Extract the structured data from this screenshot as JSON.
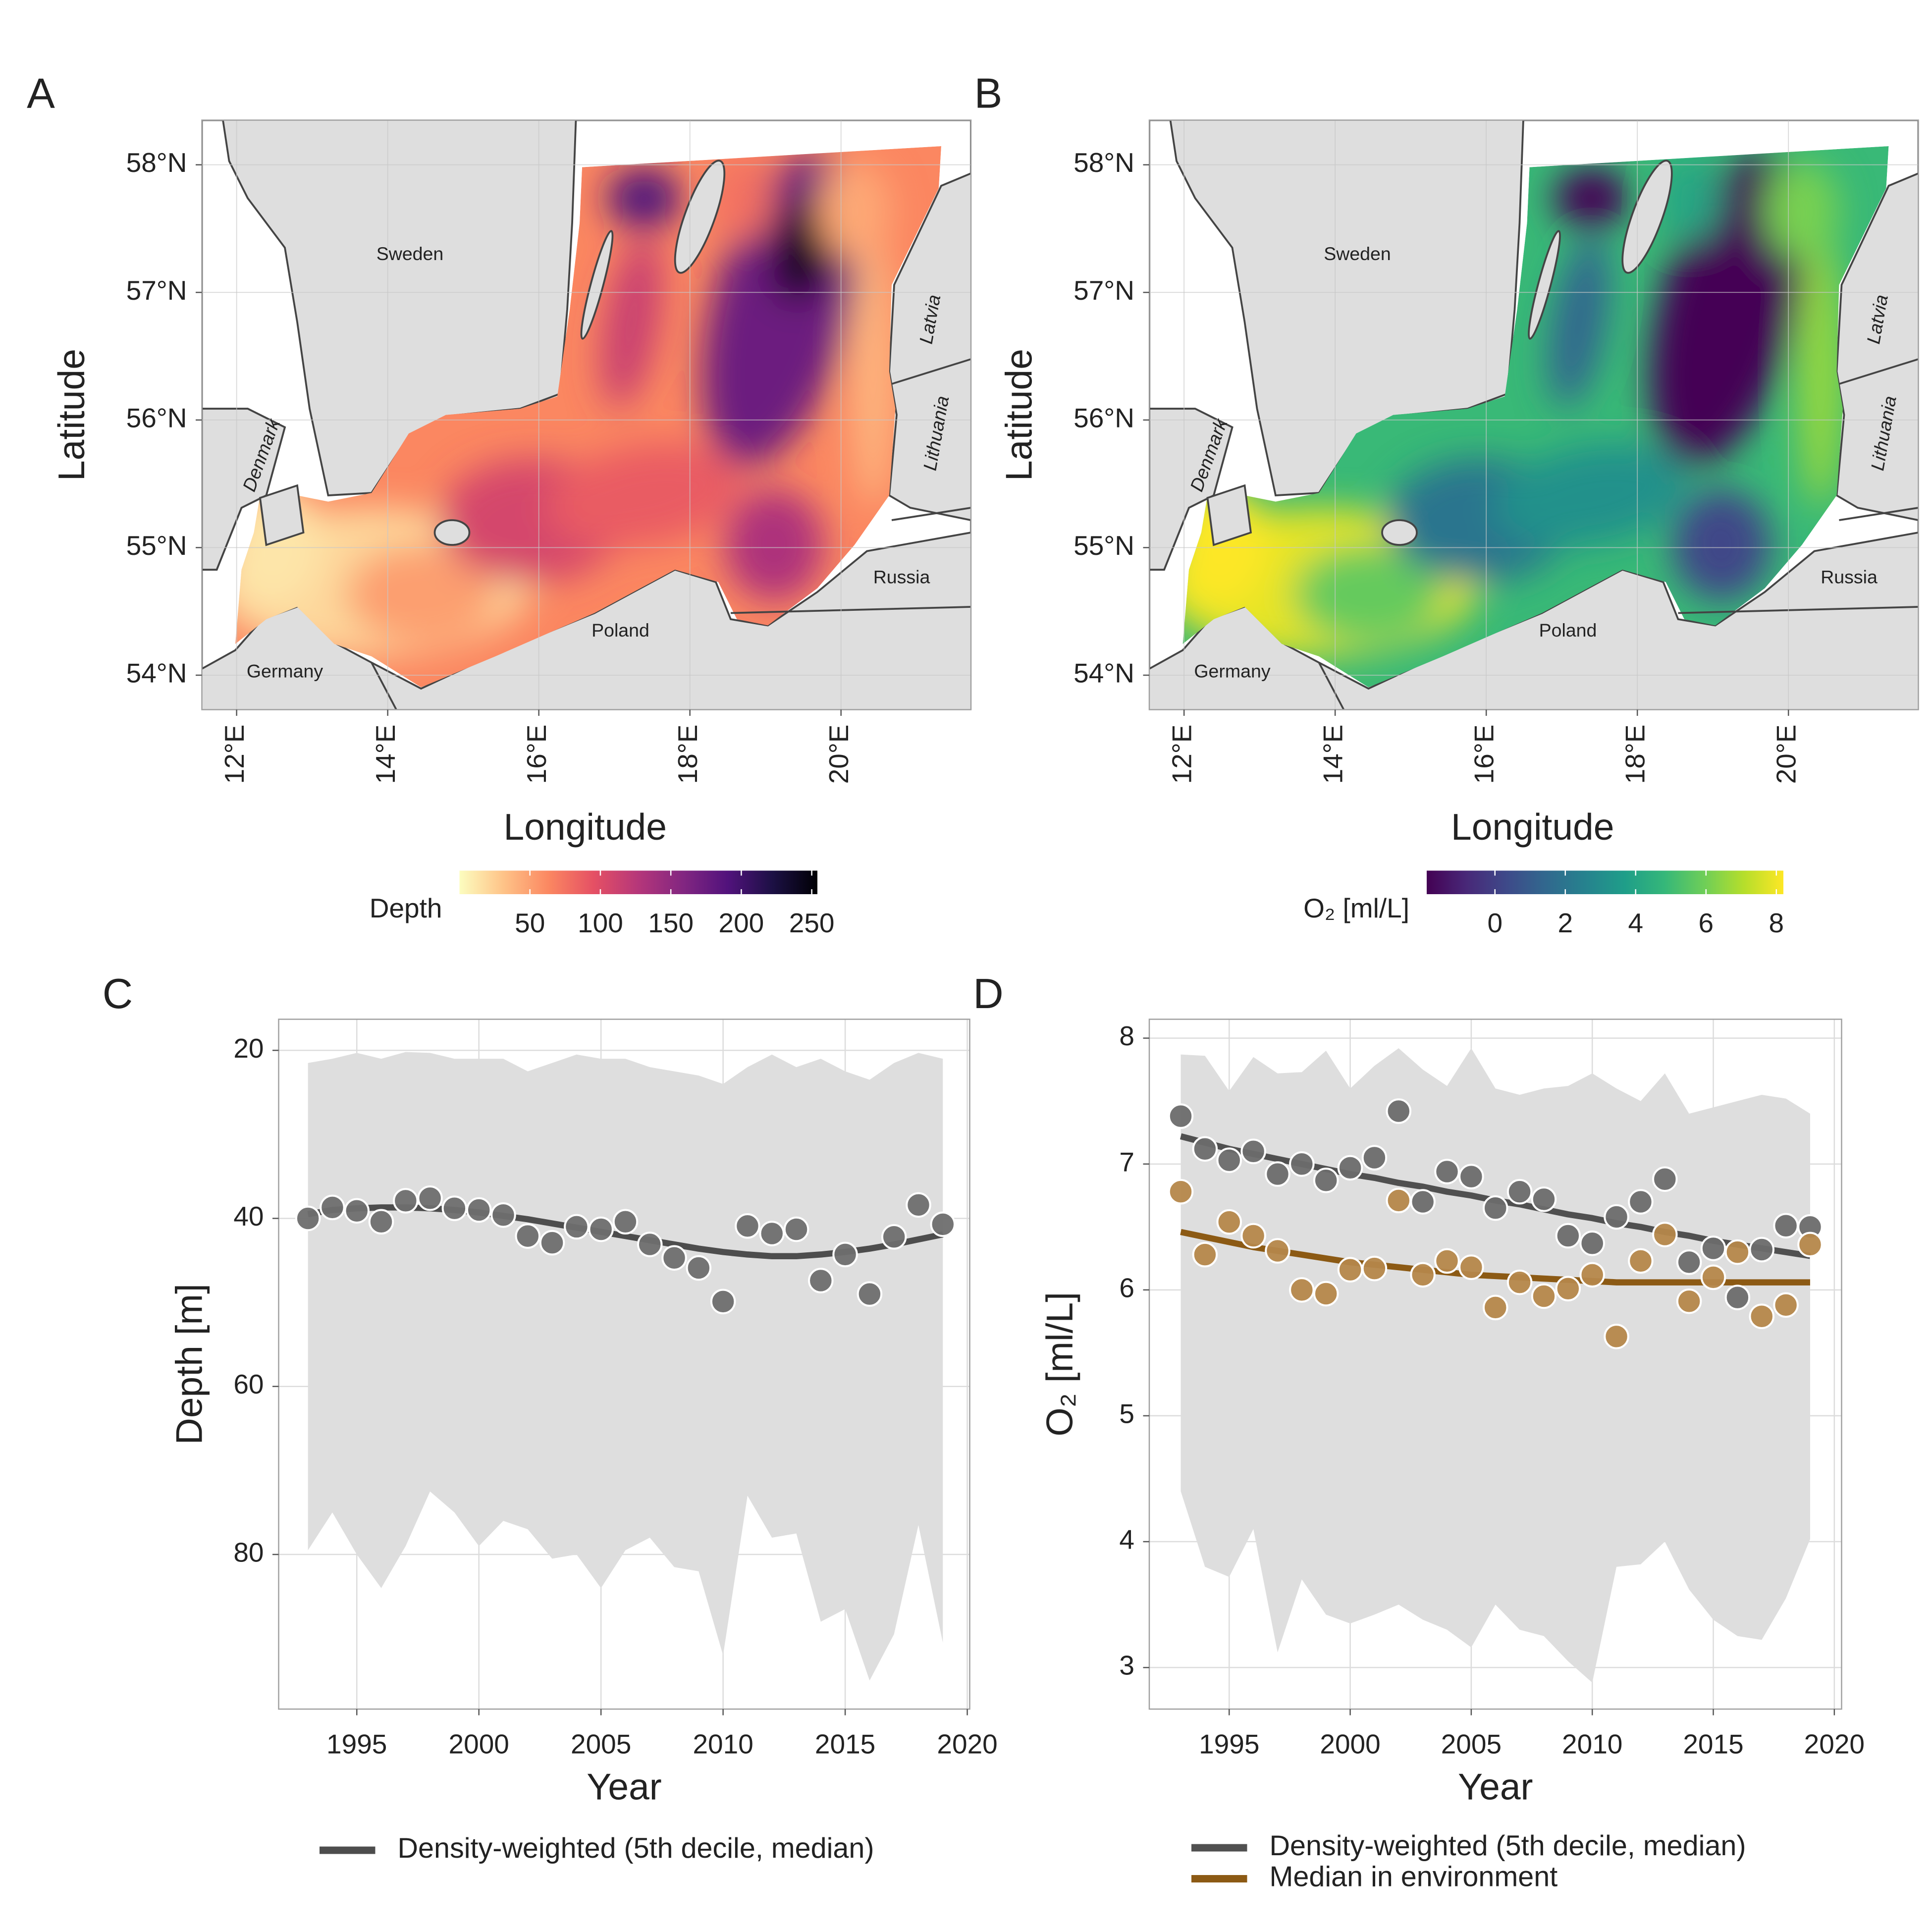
{
  "chart_data": [
    {
      "type": "map",
      "panel_label": "A",
      "x_label": "Longitude",
      "y_label": "Latitude",
      "xlim": [
        11.54,
        21.72
      ],
      "ylim": [
        53.73,
        58.35
      ],
      "xticks": [
        {
          "value": 12,
          "label": "12°E"
        },
        {
          "value": 14,
          "label": "14°E"
        },
        {
          "value": 16,
          "label": "16°E"
        },
        {
          "value": 18,
          "label": "18°E"
        },
        {
          "value": 20,
          "label": "20°E"
        }
      ],
      "yticks": [
        {
          "value": 54,
          "label": "54°N"
        },
        {
          "value": 55,
          "label": "55°N"
        },
        {
          "value": 56,
          "label": "56°N"
        },
        {
          "value": 57,
          "label": "57°N"
        },
        {
          "value": 58,
          "label": "58°N"
        }
      ],
      "grid": true,
      "colorbar": {
        "title": "Depth",
        "lim": [
          0,
          254
        ],
        "ticks": [
          50,
          100,
          150,
          200,
          250
        ],
        "colors": [
          "#fcfdbf",
          "#fec287",
          "#fb8761",
          "#e55064",
          "#b5367a",
          "#822681",
          "#51127c",
          "#1c1044",
          "#000004"
        ]
      },
      "places": [
        "Sweden",
        "Denmark",
        "Germany",
        "Poland",
        "Russia",
        "Latvia",
        "Lithuania"
      ]
    },
    {
      "type": "map",
      "panel_label": "B",
      "x_label": "Longitude",
      "y_label": "Latitude",
      "xlim": [
        11.54,
        21.72
      ],
      "ylim": [
        53.73,
        58.35
      ],
      "xticks": [
        {
          "value": 12,
          "label": "12°E"
        },
        {
          "value": 14,
          "label": "14°E"
        },
        {
          "value": 16,
          "label": "16°E"
        },
        {
          "value": 18,
          "label": "18°E"
        },
        {
          "value": 20,
          "label": "20°E"
        }
      ],
      "yticks": [
        {
          "value": 54,
          "label": "54°N"
        },
        {
          "value": 55,
          "label": "55°N"
        },
        {
          "value": 56,
          "label": "56°N"
        },
        {
          "value": 57,
          "label": "57°N"
        },
        {
          "value": 58,
          "label": "58°N"
        }
      ],
      "grid": true,
      "colorbar": {
        "title": "O₂ [ml/L]",
        "lim": [
          -1.94,
          8.2
        ],
        "ticks": [
          0,
          2,
          4,
          6,
          8
        ],
        "colors": [
          "#440154",
          "#482878",
          "#3e4989",
          "#31688e",
          "#26828e",
          "#1f9e89",
          "#35b779",
          "#6ece58",
          "#b5de2b",
          "#fde725"
        ]
      },
      "places": [
        "Sweden",
        "Denmark",
        "Germany",
        "Poland",
        "Russia",
        "Latvia",
        "Lithuania"
      ]
    },
    {
      "type": "line",
      "panel_label": "C",
      "x_label": "Year",
      "y_label": "Depth [m]",
      "x": [
        1993,
        1994,
        1995,
        1996,
        1997,
        1998,
        1999,
        2000,
        2001,
        2002,
        2003,
        2004,
        2005,
        2006,
        2007,
        2008,
        2009,
        2010,
        2011,
        2012,
        2013,
        2014,
        2015,
        2016,
        2017,
        2018,
        2019
      ],
      "xlim": [
        1991.8,
        2020.1
      ],
      "xticks": [
        1995,
        2000,
        2005,
        2010,
        2015,
        2020
      ],
      "ylim": [
        16.3,
        98.4
      ],
      "y_reverse": true,
      "yticks": [
        20,
        40,
        60,
        80
      ],
      "grid": true,
      "legend": "bottom",
      "band": {
        "color": "#dedede",
        "min": [
          21.5,
          21,
          20.3,
          21,
          20.2,
          20.3,
          21,
          21,
          21,
          22.5,
          21.5,
          20.5,
          21,
          21,
          22,
          22.5,
          23,
          24,
          22,
          20.5,
          22,
          21,
          22.5,
          23.5,
          21.5,
          20.3,
          21
        ],
        "max": [
          79.5,
          75,
          80,
          84,
          79,
          72.5,
          75,
          79,
          76,
          77,
          80.5,
          80,
          84,
          79.5,
          78,
          81.5,
          82,
          92,
          73,
          78,
          77.5,
          88,
          86.5,
          95,
          89.5,
          76.5,
          90.5
        ]
      },
      "series": [
        {
          "name": "Density-weighted (5th decile, median)",
          "color": "#4d4d4d",
          "point_color": "#6e6e6e",
          "values": [
            39.5,
            39,
            38.8,
            38.7,
            38.7,
            38.8,
            39,
            39.3,
            39.7,
            40.1,
            40.6,
            41.1,
            41.6,
            42.1,
            42.6,
            43.1,
            43.6,
            44,
            44.3,
            44.5,
            44.5,
            44.3,
            44,
            43.6,
            43.1,
            42.5,
            41.9
          ],
          "point_values": [
            40.0,
            38.7,
            39.1,
            40.4,
            37.9,
            37.6,
            38.8,
            39,
            39.6,
            42.1,
            42.9,
            41,
            41.3,
            40.4,
            43.1,
            44.7,
            45.9,
            49.9,
            40.9,
            41.8,
            41.3,
            47.4,
            44.3,
            49,
            42.2,
            38.4,
            40.7
          ]
        }
      ]
    },
    {
      "type": "line",
      "panel_label": "D",
      "x_label": "Year",
      "y_label": "O₂ [ml/L]",
      "x": [
        1993,
        1994,
        1995,
        1996,
        1997,
        1998,
        1999,
        2000,
        2001,
        2002,
        2003,
        2004,
        2005,
        2006,
        2007,
        2008,
        2009,
        2010,
        2011,
        2012,
        2013,
        2014,
        2015,
        2016,
        2017,
        2018,
        2019
      ],
      "xlim": [
        1991.7,
        2020.3
      ],
      "xticks": [
        1995,
        2000,
        2005,
        2010,
        2015,
        2020
      ],
      "ylim": [
        2.67,
        8.15
      ],
      "y_reverse": false,
      "yticks": [
        3,
        4,
        5,
        6,
        7,
        8
      ],
      "grid": true,
      "legend": "bottom",
      "band": {
        "color": "#dedede",
        "min": [
          4.4,
          3.8,
          3.72,
          4.1,
          3.12,
          3.7,
          3.42,
          3.35,
          3.42,
          3.5,
          3.38,
          3.3,
          3.16,
          3.5,
          3.3,
          3.25,
          3.05,
          2.88,
          3.8,
          3.82,
          4.0,
          3.62,
          3.38,
          3.25,
          3.22,
          3.55,
          4.02
        ],
        "max": [
          7.87,
          7.86,
          7.58,
          7.85,
          7.72,
          7.73,
          7.9,
          7.6,
          7.78,
          7.92,
          7.75,
          7.62,
          7.92,
          7.6,
          7.55,
          7.6,
          7.62,
          7.72,
          7.6,
          7.5,
          7.72,
          7.4,
          7.45,
          7.5,
          7.55,
          7.52,
          7.4
        ]
      },
      "series": [
        {
          "name": "Density-weighted (5th decile, median)",
          "color": "#505050",
          "point_color": "#6b6b6b",
          "values": [
            7.22,
            7.17,
            7.12,
            7.08,
            7.04,
            7.0,
            6.96,
            6.92,
            6.89,
            6.85,
            6.82,
            6.78,
            6.75,
            6.71,
            6.68,
            6.64,
            6.6,
            6.57,
            6.53,
            6.5,
            6.46,
            6.43,
            6.39,
            6.36,
            6.33,
            6.3,
            6.27
          ],
          "point_values": [
            7.38,
            7.12,
            7.03,
            7.1,
            6.92,
            7.0,
            6.87,
            6.97,
            7.05,
            7.42,
            6.7,
            6.94,
            6.9,
            6.65,
            6.78,
            6.72,
            6.43,
            6.37,
            6.58,
            6.7,
            6.88,
            6.22,
            6.33,
            5.94,
            6.32,
            6.51,
            6.5
          ]
        },
        {
          "name": "Median in environment",
          "color": "#8c5a14",
          "point_color": "#b5874a",
          "values": [
            6.46,
            6.42,
            6.38,
            6.34,
            6.31,
            6.28,
            6.25,
            6.22,
            6.2,
            6.18,
            6.16,
            6.14,
            6.12,
            6.11,
            6.1,
            6.09,
            6.08,
            6.07,
            6.06,
            6.06,
            6.06,
            6.06,
            6.06,
            6.06,
            6.06,
            6.06,
            6.06
          ],
          "point_values": [
            6.78,
            6.28,
            6.54,
            6.43,
            6.31,
            6.0,
            5.97,
            6.16,
            6.17,
            6.71,
            6.12,
            6.23,
            6.18,
            5.86,
            6.06,
            5.95,
            6.01,
            6.12,
            5.63,
            6.23,
            6.44,
            5.91,
            6.1,
            6.3,
            5.79,
            5.88,
            6.36
          ]
        }
      ]
    }
  ]
}
